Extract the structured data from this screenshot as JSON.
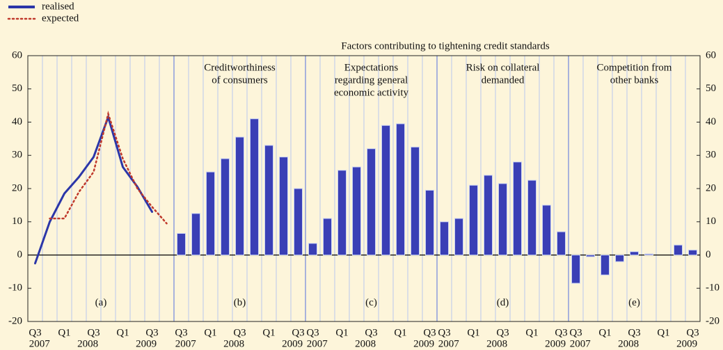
{
  "chart_data": {
    "type": "panels",
    "title": "Factors contributing to tightening credit standards",
    "ylim": [
      -20,
      60
    ],
    "yticks": [
      -20,
      -10,
      0,
      10,
      20,
      30,
      40,
      50,
      60
    ],
    "panels": [
      {
        "type": "line",
        "label": "(a)",
        "categories": [
          "Q3",
          null,
          "Q1",
          null,
          "Q3",
          null,
          "Q1",
          null,
          "Q3",
          null
        ],
        "years": [
          "2007",
          "2008",
          "2009"
        ],
        "series": [
          {
            "name": "realised",
            "color": "#2B36A8",
            "dash": false,
            "values": [
              -2.5,
              10,
              18.5,
              23.5,
              29.5,
              41.5,
              26.5,
              20.5,
              13,
              null
            ]
          },
          {
            "name": "expected",
            "color": "#C0392B",
            "dash": true,
            "values": [
              null,
              11,
              11,
              19,
              25,
              42.5,
              29,
              20,
              14.5,
              9.5
            ]
          }
        ]
      },
      {
        "type": "bar",
        "label": "(b)",
        "title": [
          "Creditworthiness",
          "of consumers"
        ],
        "categories": [
          "Q3",
          null,
          "Q1",
          null,
          "Q3",
          null,
          "Q1",
          null,
          "Q3"
        ],
        "years": [
          "2007",
          "2008",
          "2009"
        ],
        "color": "#3A3FB5",
        "values": [
          6.5,
          12.5,
          25,
          29,
          35.5,
          41,
          33,
          29.5,
          20
        ]
      },
      {
        "type": "bar",
        "label": "(c)",
        "title": [
          "Expectations",
          "regarding general",
          "economic activity"
        ],
        "categories": [
          "Q3",
          null,
          "Q1",
          null,
          "Q3",
          null,
          "Q1",
          null,
          "Q3"
        ],
        "years": [
          "2007",
          "2008",
          "2009"
        ],
        "color": "#3A3FB5",
        "values": [
          3.5,
          11,
          25.5,
          26.5,
          32,
          39,
          39.5,
          32.5,
          19.5
        ]
      },
      {
        "type": "bar",
        "label": "(d)",
        "title": [
          "Risk on collateral",
          "demanded"
        ],
        "categories": [
          "Q3",
          null,
          "Q1",
          null,
          "Q3",
          null,
          "Q1",
          null,
          "Q3"
        ],
        "years": [
          "2007",
          "2008",
          "2009"
        ],
        "color": "#3A3FB5",
        "values": [
          10,
          11,
          21,
          24,
          21.5,
          28,
          22.5,
          15,
          7
        ]
      },
      {
        "type": "bar",
        "label": "(e)",
        "title": [
          "Competition from",
          "other banks"
        ],
        "categories": [
          "Q3",
          null,
          "Q1",
          null,
          "Q3",
          null,
          "Q1",
          null,
          "Q3"
        ],
        "years": [
          "2007",
          "2008",
          "2009"
        ],
        "color": "#3A3FB5",
        "values": [
          -8.5,
          -0.5,
          -6,
          -2,
          1,
          0.3,
          0,
          3,
          1.5
        ]
      }
    ]
  }
}
